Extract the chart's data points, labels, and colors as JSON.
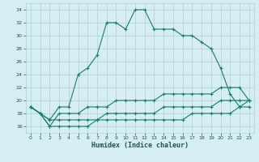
{
  "xlabel": "Humidex (Indice chaleur)",
  "background_color": "#d6eef2",
  "grid_color": "#b0d0d0",
  "line_color": "#1a7a6e",
  "xlim": [
    -0.5,
    23.5
  ],
  "ylim": [
    15,
    35
  ],
  "yticks": [
    16,
    18,
    20,
    22,
    24,
    26,
    28,
    30,
    32,
    34
  ],
  "xticks": [
    0,
    1,
    2,
    3,
    4,
    5,
    6,
    7,
    8,
    9,
    10,
    11,
    12,
    13,
    14,
    15,
    16,
    17,
    18,
    19,
    20,
    21,
    22,
    23
  ],
  "line1_x": [
    0,
    1,
    2,
    3,
    4,
    5,
    6,
    7,
    8,
    9,
    10,
    11,
    12,
    13,
    14,
    15,
    16,
    17,
    18,
    19,
    20,
    21,
    22,
    23
  ],
  "line1_y": [
    19,
    18,
    17,
    19,
    19,
    24,
    25,
    27,
    32,
    32,
    31,
    34,
    34,
    31,
    31,
    31,
    30,
    30,
    29,
    28,
    25,
    21,
    19,
    20
  ],
  "line2_x": [
    0,
    1,
    2,
    3,
    4,
    5,
    6,
    7,
    8,
    9,
    10,
    11,
    12,
    13,
    14,
    15,
    16,
    17,
    18,
    19,
    20,
    21,
    22,
    23
  ],
  "line2_y": [
    19,
    18,
    16,
    18,
    18,
    18,
    19,
    19,
    19,
    20,
    20,
    20,
    20,
    20,
    21,
    21,
    21,
    21,
    21,
    21,
    22,
    22,
    22,
    20
  ],
  "line3_x": [
    0,
    1,
    2,
    3,
    4,
    5,
    6,
    7,
    8,
    9,
    10,
    11,
    12,
    13,
    14,
    15,
    16,
    17,
    18,
    19,
    20,
    21,
    22,
    23
  ],
  "line3_y": [
    19,
    18,
    17,
    17,
    17,
    17,
    17,
    17,
    18,
    18,
    18,
    18,
    18,
    18,
    19,
    19,
    19,
    19,
    19,
    19,
    20,
    20,
    20,
    20
  ],
  "line4_x": [
    0,
    1,
    2,
    3,
    4,
    5,
    6,
    7,
    8,
    9,
    10,
    11,
    12,
    13,
    14,
    15,
    16,
    17,
    18,
    19,
    20,
    21,
    22,
    23
  ],
  "line4_y": [
    19,
    18,
    16,
    16,
    16,
    16,
    16,
    17,
    17,
    17,
    17,
    17,
    17,
    17,
    17,
    17,
    17,
    18,
    18,
    18,
    18,
    18,
    19,
    19
  ]
}
